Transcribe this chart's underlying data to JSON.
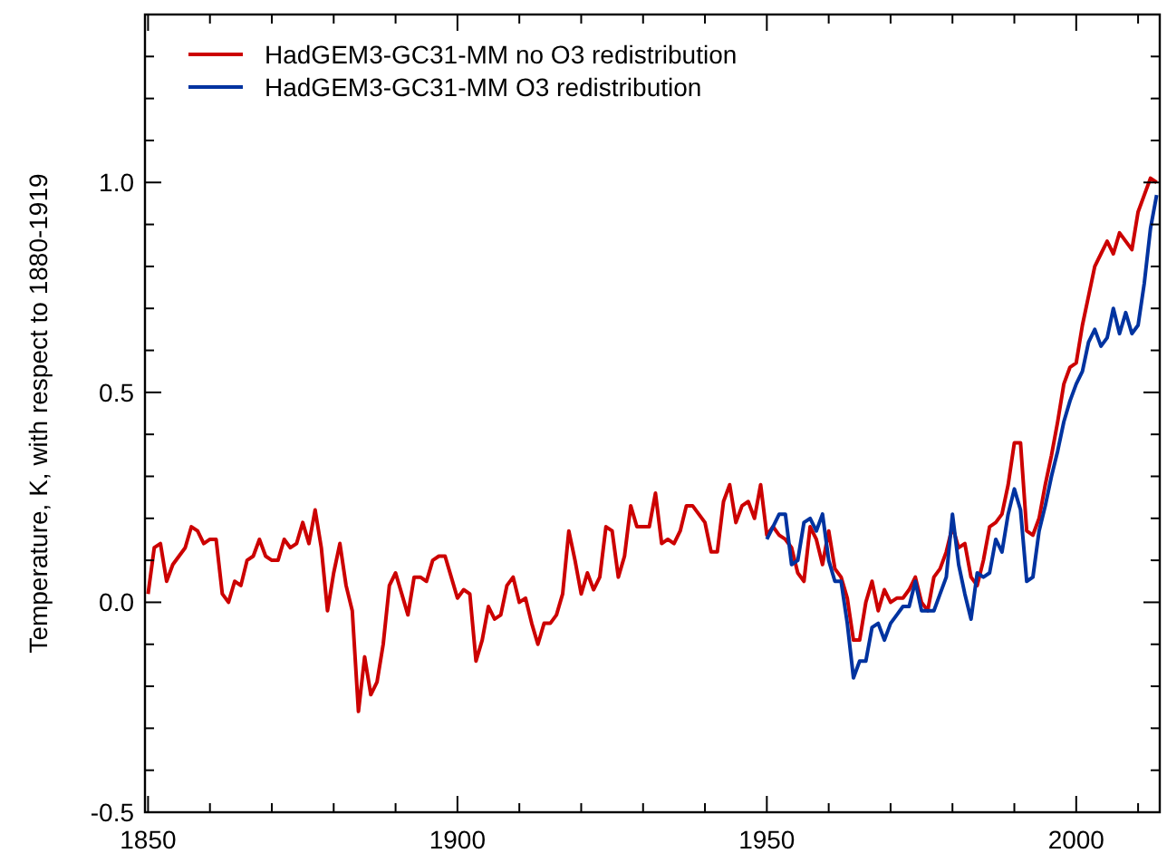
{
  "chart_data": {
    "type": "line",
    "ylabel": "Temperature, K, with respect to 1880-1919",
    "xlim": [
      1849.5,
      2013.5
    ],
    "ylim": [
      -0.5,
      1.4
    ],
    "xticks": [
      1850,
      {
        "value": 1860,
        "label": null
      },
      {
        "value": 1870,
        "label": null
      },
      {
        "value": 1880,
        "label": null
      },
      {
        "value": 1890,
        "label": null
      },
      1900,
      {
        "value": 1910,
        "label": null
      },
      {
        "value": 1920,
        "label": null
      },
      {
        "value": 1930,
        "label": null
      },
      {
        "value": 1940,
        "label": null
      },
      1950,
      {
        "value": 1960,
        "label": null
      },
      {
        "value": 1970,
        "label": null
      },
      {
        "value": 1980,
        "label": null
      },
      {
        "value": 1990,
        "label": null
      },
      2000,
      {
        "value": 2010,
        "label": null
      }
    ],
    "yticks": [
      {
        "value": -0.5,
        "label": "-0.5"
      },
      {
        "value": -0.4,
        "label": null
      },
      {
        "value": -0.3,
        "label": null
      },
      {
        "value": -0.2,
        "label": null
      },
      {
        "value": -0.1,
        "label": null
      },
      {
        "value": 0,
        "label": "0.0"
      },
      {
        "value": 0.1,
        "label": null
      },
      {
        "value": 0.2,
        "label": null
      },
      {
        "value": 0.3,
        "label": null
      },
      {
        "value": 0.4,
        "label": null
      },
      {
        "value": 0.5,
        "label": "0.5"
      },
      {
        "value": 0.6,
        "label": null
      },
      {
        "value": 0.7,
        "label": null
      },
      {
        "value": 0.8,
        "label": null
      },
      {
        "value": 0.9,
        "label": null
      },
      {
        "value": 1.0,
        "label": "1.0"
      },
      {
        "value": 1.1,
        "label": null
      },
      {
        "value": 1.2,
        "label": null
      },
      {
        "value": 1.3,
        "label": null
      }
    ],
    "grid": false,
    "legend": "top left",
    "marker": "none",
    "line_style": "solid",
    "series": [
      {
        "name": "HadGEM3-GC31-MM no O3 redistribution",
        "color": "#cc0000",
        "x": [
          1850,
          1851,
          1852,
          1853,
          1854,
          1855,
          1856,
          1857,
          1858,
          1859,
          1860,
          1861,
          1862,
          1863,
          1864,
          1865,
          1866,
          1867,
          1868,
          1869,
          1870,
          1871,
          1872,
          1873,
          1874,
          1875,
          1876,
          1877,
          1878,
          1879,
          1880,
          1881,
          1882,
          1883,
          1884,
          1885,
          1886,
          1887,
          1888,
          1889,
          1890,
          1891,
          1892,
          1893,
          1894,
          1895,
          1896,
          1897,
          1898,
          1899,
          1900,
          1901,
          1902,
          1903,
          1904,
          1905,
          1906,
          1907,
          1908,
          1909,
          1910,
          1911,
          1912,
          1913,
          1914,
          1915,
          1916,
          1917,
          1918,
          1919,
          1920,
          1921,
          1922,
          1923,
          1924,
          1925,
          1926,
          1927,
          1928,
          1929,
          1930,
          1931,
          1932,
          1933,
          1934,
          1935,
          1936,
          1937,
          1938,
          1939,
          1940,
          1941,
          1942,
          1943,
          1944,
          1945,
          1946,
          1947,
          1948,
          1949,
          1950,
          1951,
          1952,
          1953,
          1954,
          1955,
          1956,
          1957,
          1958,
          1959,
          1960,
          1961,
          1962,
          1963,
          1964,
          1965,
          1966,
          1967,
          1968,
          1969,
          1970,
          1971,
          1972,
          1973,
          1974,
          1975,
          1976,
          1977,
          1978,
          1979,
          1980,
          1981,
          1982,
          1983,
          1984,
          1985,
          1986,
          1987,
          1988,
          1989,
          1990,
          1991,
          1992,
          1993,
          1994,
          1995,
          1996,
          1997,
          1998,
          1999,
          2000,
          2001,
          2002,
          2003,
          2004,
          2005,
          2006,
          2007,
          2008,
          2009,
          2010,
          2011,
          2012,
          2013
        ],
        "values": [
          0.02,
          0.13,
          0.14,
          0.05,
          0.09,
          0.11,
          0.13,
          0.18,
          0.17,
          0.14,
          0.15,
          0.15,
          0.02,
          0.0,
          0.05,
          0.04,
          0.1,
          0.11,
          0.15,
          0.11,
          0.1,
          0.1,
          0.15,
          0.13,
          0.14,
          0.19,
          0.14,
          0.22,
          0.13,
          -0.02,
          0.07,
          0.14,
          0.04,
          -0.02,
          -0.26,
          -0.13,
          -0.22,
          -0.19,
          -0.1,
          0.04,
          0.07,
          0.02,
          -0.03,
          0.06,
          0.06,
          0.05,
          0.1,
          0.11,
          0.11,
          0.06,
          0.01,
          0.03,
          0.02,
          -0.14,
          -0.09,
          -0.01,
          -0.04,
          -0.03,
          0.04,
          0.06,
          0.0,
          0.01,
          -0.05,
          -0.1,
          -0.05,
          -0.05,
          -0.03,
          0.02,
          0.17,
          0.1,
          0.02,
          0.07,
          0.03,
          0.06,
          0.18,
          0.17,
          0.06,
          0.11,
          0.23,
          0.18,
          0.18,
          0.18,
          0.26,
          0.14,
          0.15,
          0.14,
          0.17,
          0.23,
          0.23,
          0.21,
          0.19,
          0.12,
          0.12,
          0.24,
          0.28,
          0.19,
          0.23,
          0.24,
          0.2,
          0.28,
          0.16,
          0.18,
          0.16,
          0.15,
          0.13,
          0.07,
          0.05,
          0.18,
          0.15,
          0.09,
          0.17,
          0.08,
          0.06,
          0.01,
          -0.09,
          -0.09,
          0.0,
          0.05,
          -0.02,
          0.03,
          0.0,
          0.01,
          0.01,
          0.03,
          0.06,
          0.0,
          -0.02,
          0.06,
          0.08,
          0.12,
          0.18,
          0.13,
          0.14,
          0.06,
          0.04,
          0.1,
          0.18,
          0.19,
          0.21,
          0.28,
          0.38,
          0.38,
          0.17,
          0.16,
          0.2,
          0.28,
          0.35,
          0.43,
          0.52,
          0.56,
          0.57,
          0.66,
          0.73,
          0.8,
          0.83,
          0.86,
          0.83,
          0.88,
          0.86,
          0.84,
          0.93,
          0.97,
          1.01,
          1.0
        ]
      },
      {
        "name": "HadGEM3-GC31-MM O3 redistribution",
        "color": "#0033a0",
        "x": [
          1950,
          1951,
          1952,
          1953,
          1954,
          1955,
          1956,
          1957,
          1958,
          1959,
          1960,
          1961,
          1962,
          1963,
          1964,
          1965,
          1966,
          1967,
          1968,
          1969,
          1970,
          1971,
          1972,
          1973,
          1974,
          1975,
          1976,
          1977,
          1978,
          1979,
          1980,
          1981,
          1982,
          1983,
          1984,
          1985,
          1986,
          1987,
          1988,
          1989,
          1990,
          1991,
          1992,
          1993,
          1994,
          1995,
          1996,
          1997,
          1998,
          1999,
          2000,
          2001,
          2002,
          2003,
          2004,
          2005,
          2006,
          2007,
          2008,
          2009,
          2010,
          2011,
          2012,
          2013
        ],
        "values": [
          0.15,
          0.18,
          0.21,
          0.21,
          0.09,
          0.1,
          0.19,
          0.2,
          0.17,
          0.21,
          0.1,
          0.05,
          0.05,
          -0.05,
          -0.18,
          -0.14,
          -0.14,
          -0.06,
          -0.05,
          -0.09,
          -0.05,
          -0.03,
          -0.01,
          -0.01,
          0.05,
          -0.02,
          -0.02,
          -0.02,
          0.02,
          0.06,
          0.21,
          0.09,
          0.02,
          -0.04,
          0.07,
          0.06,
          0.07,
          0.15,
          0.12,
          0.21,
          0.27,
          0.22,
          0.05,
          0.06,
          0.17,
          0.23,
          0.3,
          0.36,
          0.43,
          0.48,
          0.52,
          0.55,
          0.62,
          0.65,
          0.61,
          0.63,
          0.7,
          0.64,
          0.69,
          0.64,
          0.66,
          0.76,
          0.89,
          0.97
        ]
      }
    ]
  }
}
